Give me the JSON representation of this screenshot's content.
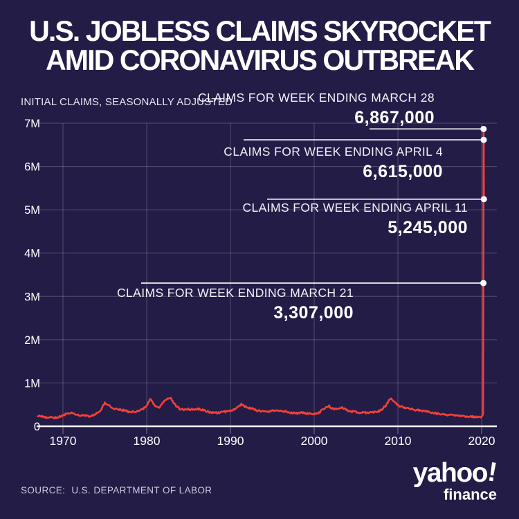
{
  "title": {
    "line1": "U.S. JOBLESS CLAIMS SKYROCKET",
    "line2": "AMID CORONAVIRUS OUTBREAK"
  },
  "subtitle": "INITIAL CLAIMS, SEASONALLY ADJUSTED",
  "source": {
    "label": "SOURCE:",
    "text": "U.S. DEPARTMENT OF LABOR"
  },
  "logo": {
    "brand": "yahoo",
    "bang": "!",
    "sub": "finance"
  },
  "colors": {
    "background": "#231c47",
    "line": "#f4403a",
    "grid": "rgba(255,255,255,0.22)",
    "tick": "rgba(255,255,255,0.4)",
    "axis": "#f7f6fb",
    "annotation_line": "#ffffff",
    "dot": "#ffffff",
    "text": "#ffffff"
  },
  "chart_data": {
    "type": "line",
    "title": "U.S. JOBLESS CLAIMS SKYROCKET AMID CORONAVIRUS OUTBREAK",
    "subtitle": "INITIAL CLAIMS, SEASONALLY ADJUSTED",
    "series_name": "U.S. initial jobless claims, seasonally adjusted",
    "xlabel": "",
    "ylabel": "",
    "xlim": [
      1967,
      2021.5
    ],
    "ylim": [
      0,
      7000000
    ],
    "grid": true,
    "legend": false,
    "x_ticks": [
      "1970",
      "1980",
      "1990",
      "2000",
      "2010",
      "2020"
    ],
    "y_ticks": [
      "7M",
      "6M",
      "5M",
      "4M",
      "3M",
      "2M",
      "1M",
      "0"
    ],
    "x": [
      1967,
      1967.5,
      1968,
      1968.5,
      1969,
      1969.5,
      1970,
      1970.5,
      1971,
      1971.5,
      1972,
      1972.5,
      1973,
      1973.5,
      1974,
      1974.5,
      1975,
      1975.25,
      1975.5,
      1976,
      1976.5,
      1977,
      1977.5,
      1978,
      1978.5,
      1979,
      1979.5,
      1980,
      1980.4,
      1980.7,
      1981,
      1981.5,
      1982,
      1982.5,
      1982.9,
      1983,
      1983.5,
      1984,
      1984.5,
      1985,
      1985.5,
      1986,
      1986.5,
      1987,
      1987.5,
      1988,
      1988.5,
      1989,
      1989.5,
      1990,
      1990.5,
      1991,
      1991.3,
      1991.6,
      1992,
      1992.5,
      1993,
      1993.5,
      1994,
      1994.5,
      1995,
      1995.5,
      1996,
      1996.5,
      1997,
      1997.5,
      1998,
      1998.5,
      1999,
      1999.5,
      2000,
      2000.5,
      2001,
      2001.5,
      2001.8,
      2002,
      2002.5,
      2003,
      2003.3,
      2003.7,
      2004,
      2004.5,
      2005,
      2005.5,
      2006,
      2006.5,
      2007,
      2007.5,
      2008,
      2008.5,
      2009,
      2009.2,
      2009.5,
      2010,
      2010.5,
      2011,
      2011.5,
      2012,
      2012.5,
      2013,
      2013.5,
      2014,
      2014.5,
      2015,
      2015.5,
      2016,
      2016.5,
      2017,
      2017.5,
      2018,
      2018.5,
      2019,
      2019.5,
      2020.0,
      2020.17,
      2020.21,
      2020.23,
      2020.25,
      2020.27
    ],
    "y": [
      250000,
      225000,
      210000,
      205000,
      200000,
      210000,
      250000,
      295000,
      300000,
      280000,
      260000,
      245000,
      235000,
      250000,
      290000,
      350000,
      550000,
      520000,
      470000,
      410000,
      390000,
      380000,
      355000,
      330000,
      340000,
      350000,
      395000,
      460000,
      620000,
      570000,
      460000,
      430000,
      560000,
      640000,
      670000,
      600000,
      480000,
      395000,
      380000,
      390000,
      395000,
      400000,
      390000,
      350000,
      325000,
      310000,
      315000,
      330000,
      340000,
      360000,
      400000,
      460000,
      500000,
      465000,
      440000,
      410000,
      375000,
      350000,
      340000,
      330000,
      360000,
      370000,
      360000,
      345000,
      325000,
      310000,
      300000,
      310000,
      300000,
      290000,
      285000,
      300000,
      380000,
      430000,
      470000,
      420000,
      400000,
      425000,
      430000,
      400000,
      355000,
      340000,
      330000,
      320000,
      310000,
      315000,
      320000,
      335000,
      375000,
      470000,
      620000,
      655000,
      570000,
      480000,
      455000,
      420000,
      400000,
      380000,
      370000,
      350000,
      340000,
      320000,
      300000,
      285000,
      270000,
      262000,
      255000,
      247000,
      240000,
      228000,
      218000,
      222000,
      215000,
      212000,
      282000,
      3307000,
      6867000,
      6615000,
      5245000
    ],
    "annotations": [
      {
        "label": "CLAIMS FOR WEEK ENDING MARCH 28",
        "value": "6,867,000",
        "value_num": 6867000,
        "year": 2020.23
      },
      {
        "label": "CLAIMS FOR WEEK ENDING APRIL 4",
        "value": "6,615,000",
        "value_num": 6615000,
        "year": 2020.25
      },
      {
        "label": "CLAIMS FOR WEEK ENDING APRIL 11",
        "value": "5,245,000",
        "value_num": 5245000,
        "year": 2020.27
      },
      {
        "label": "CLAIMS FOR WEEK ENDING MARCH 21",
        "value": "3,307,000",
        "value_num": 3307000,
        "year": 2020.21
      }
    ]
  }
}
